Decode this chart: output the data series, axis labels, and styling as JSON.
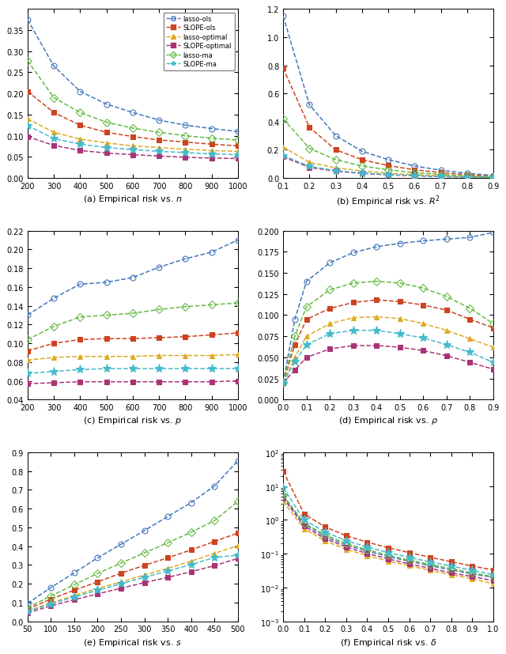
{
  "colors": {
    "lasso_ols": "#4477BB",
    "SLOPE_ols": "#CC4422",
    "lasso_optimal": "#DDAA22",
    "SLOPE_optimal": "#AA3377",
    "lasso_ma": "#66BB44",
    "SLOPE_ma": "#44BBCC"
  },
  "markers": {
    "lasso_ols": "o",
    "SLOPE_ols": "s",
    "lasso_optimal": "^",
    "SLOPE_optimal": "s",
    "lasso_ma": "D",
    "SLOPE_ma": "*"
  },
  "open_markers": [
    "o",
    "D"
  ],
  "legend_labels": [
    "lasso-ols",
    "SLOPE-ols",
    "lasso-optimal",
    "SLOPE-optimal",
    "lasso-ma",
    "SLOPE-ma"
  ],
  "subplot_titles": [
    "(a) Empirical risk vs. $n$",
    "(b) Empirical risk vs. $R^2$",
    "(c) Empirical risk vs. $p$",
    "(d) Empirical risk vs. $\\rho$",
    "(e) Empirical risk vs. $s$",
    "(f) Empirical risk vs. $\\delta$"
  ],
  "panel_a": {
    "x": [
      200,
      300,
      400,
      500,
      600,
      700,
      800,
      900,
      1000
    ],
    "lasso_ols": [
      0.375,
      0.265,
      0.205,
      0.175,
      0.155,
      0.137,
      0.125,
      0.117,
      0.11
    ],
    "SLOPE_ols": [
      0.205,
      0.155,
      0.125,
      0.108,
      0.098,
      0.09,
      0.085,
      0.08,
      0.076
    ],
    "lasso_optimal": [
      0.14,
      0.108,
      0.092,
      0.083,
      0.076,
      0.072,
      0.068,
      0.065,
      0.063
    ],
    "SLOPE_optimal": [
      0.098,
      0.077,
      0.065,
      0.059,
      0.055,
      0.052,
      0.049,
      0.047,
      0.046
    ],
    "lasso_ma": [
      0.278,
      0.19,
      0.155,
      0.132,
      0.118,
      0.108,
      0.1,
      0.094,
      0.09
    ],
    "SLOPE_ma": [
      0.124,
      0.093,
      0.08,
      0.072,
      0.067,
      0.063,
      0.06,
      0.057,
      0.055
    ],
    "xlim": [
      200,
      1000
    ],
    "ylim": [
      0.0,
      0.4
    ],
    "yticks": [
      0.0,
      0.05,
      0.1,
      0.15,
      0.2,
      0.25,
      0.3,
      0.35
    ],
    "xticks": [
      200,
      300,
      400,
      500,
      600,
      700,
      800,
      900,
      1000
    ]
  },
  "panel_b": {
    "x": [
      0.1,
      0.2,
      0.3,
      0.4,
      0.5,
      0.6,
      0.7,
      0.8,
      0.9
    ],
    "lasso_ols": [
      1.15,
      0.52,
      0.3,
      0.19,
      0.13,
      0.085,
      0.055,
      0.033,
      0.018
    ],
    "SLOPE_ols": [
      0.78,
      0.36,
      0.2,
      0.13,
      0.088,
      0.058,
      0.038,
      0.023,
      0.012
    ],
    "lasso_optimal": [
      0.22,
      0.11,
      0.072,
      0.049,
      0.034,
      0.023,
      0.015,
      0.009,
      0.005
    ],
    "SLOPE_optimal": [
      0.15,
      0.075,
      0.048,
      0.032,
      0.022,
      0.015,
      0.01,
      0.006,
      0.003
    ],
    "lasso_ma": [
      0.42,
      0.21,
      0.13,
      0.085,
      0.058,
      0.038,
      0.025,
      0.015,
      0.008
    ],
    "SLOPE_ma": [
      0.16,
      0.082,
      0.052,
      0.035,
      0.024,
      0.016,
      0.01,
      0.006,
      0.003
    ],
    "xlim": [
      0.1,
      0.9
    ],
    "ylim": [
      0.0,
      1.2
    ],
    "yticks": [
      0.0,
      0.2,
      0.4,
      0.6,
      0.8,
      1.0,
      1.2
    ],
    "xticks": [
      0.1,
      0.2,
      0.3,
      0.4,
      0.5,
      0.6,
      0.7,
      0.8,
      0.9
    ]
  },
  "panel_c": {
    "x": [
      200,
      300,
      400,
      500,
      600,
      700,
      800,
      900,
      1000
    ],
    "lasso_ols": [
      0.13,
      0.148,
      0.163,
      0.165,
      0.17,
      0.181,
      0.19,
      0.197,
      0.21
    ],
    "SLOPE_ols": [
      0.092,
      0.1,
      0.104,
      0.105,
      0.105,
      0.106,
      0.107,
      0.109,
      0.111
    ],
    "lasso_optimal": [
      0.082,
      0.085,
      0.086,
      0.086,
      0.086,
      0.087,
      0.087,
      0.087,
      0.088
    ],
    "SLOPE_optimal": [
      0.057,
      0.058,
      0.059,
      0.059,
      0.059,
      0.059,
      0.059,
      0.059,
      0.06
    ],
    "lasso_ma": [
      0.104,
      0.118,
      0.128,
      0.13,
      0.132,
      0.136,
      0.139,
      0.141,
      0.143
    ],
    "SLOPE_ma": [
      0.068,
      0.07,
      0.072,
      0.073,
      0.073,
      0.073,
      0.073,
      0.073,
      0.073
    ],
    "xlim": [
      200,
      1000
    ],
    "ylim": [
      0.04,
      0.22
    ],
    "yticks": [
      0.04,
      0.06,
      0.08,
      0.1,
      0.12,
      0.14,
      0.16,
      0.18,
      0.2,
      0.22
    ],
    "xticks": [
      200,
      300,
      400,
      500,
      600,
      700,
      800,
      900,
      1000
    ]
  },
  "panel_d": {
    "x": [
      0.0,
      0.05,
      0.1,
      0.2,
      0.3,
      0.4,
      0.5,
      0.6,
      0.7,
      0.8,
      0.9
    ],
    "lasso_ols": [
      0.02,
      0.095,
      0.14,
      0.162,
      0.174,
      0.181,
      0.185,
      0.188,
      0.19,
      0.192,
      0.198
    ],
    "SLOPE_ols": [
      0.02,
      0.065,
      0.095,
      0.108,
      0.115,
      0.118,
      0.116,
      0.112,
      0.106,
      0.095,
      0.085
    ],
    "lasso_optimal": [
      0.02,
      0.05,
      0.075,
      0.09,
      0.097,
      0.098,
      0.096,
      0.09,
      0.082,
      0.072,
      0.062
    ],
    "SLOPE_optimal": [
      0.02,
      0.035,
      0.05,
      0.06,
      0.064,
      0.064,
      0.062,
      0.058,
      0.052,
      0.044,
      0.036
    ],
    "lasso_ma": [
      0.02,
      0.075,
      0.11,
      0.13,
      0.138,
      0.14,
      0.138,
      0.132,
      0.122,
      0.108,
      0.09
    ],
    "SLOPE_ma": [
      0.02,
      0.045,
      0.065,
      0.078,
      0.082,
      0.082,
      0.078,
      0.073,
      0.065,
      0.056,
      0.044
    ],
    "xlim": [
      0.0,
      0.9
    ],
    "ylim": [
      0.0,
      0.2
    ],
    "yticks": [
      0.0,
      0.02,
      0.04,
      0.06,
      0.08,
      0.1,
      0.12,
      0.14,
      0.16,
      0.18,
      0.2
    ],
    "xticks": [
      0.0,
      0.1,
      0.2,
      0.3,
      0.4,
      0.5,
      0.6,
      0.7,
      0.8,
      0.9
    ]
  },
  "panel_e": {
    "x": [
      50,
      100,
      150,
      200,
      250,
      300,
      350,
      400,
      450,
      500
    ],
    "lasso_ols": [
      0.095,
      0.18,
      0.258,
      0.338,
      0.41,
      0.483,
      0.558,
      0.632,
      0.72,
      0.855
    ],
    "SLOPE_ols": [
      0.065,
      0.118,
      0.166,
      0.21,
      0.256,
      0.298,
      0.338,
      0.38,
      0.425,
      0.47
    ],
    "lasso_optimal": [
      0.055,
      0.098,
      0.138,
      0.175,
      0.21,
      0.246,
      0.282,
      0.32,
      0.362,
      0.402
    ],
    "SLOPE_optimal": [
      0.045,
      0.082,
      0.115,
      0.146,
      0.176,
      0.206,
      0.234,
      0.264,
      0.296,
      0.335
    ],
    "lasso_ma": [
      0.072,
      0.135,
      0.195,
      0.255,
      0.31,
      0.364,
      0.418,
      0.474,
      0.536,
      0.638
    ],
    "SLOPE_ma": [
      0.052,
      0.092,
      0.13,
      0.165,
      0.2,
      0.234,
      0.268,
      0.302,
      0.34,
      0.352
    ],
    "xlim": [
      50,
      500
    ],
    "ylim": [
      0.0,
      0.9
    ],
    "yticks": [
      0.0,
      0.1,
      0.2,
      0.3,
      0.4,
      0.5,
      0.6,
      0.7,
      0.8,
      0.9
    ],
    "xticks": [
      50,
      100,
      150,
      200,
      250,
      300,
      350,
      400,
      450,
      500
    ]
  },
  "panel_f": {
    "x": [
      0.0,
      0.1,
      0.2,
      0.3,
      0.4,
      0.5,
      0.6,
      0.7,
      0.8,
      0.9,
      1.0
    ],
    "lasso_ols": [
      5.0,
      0.75,
      0.32,
      0.18,
      0.12,
      0.082,
      0.06,
      0.044,
      0.033,
      0.025,
      0.02
    ],
    "SLOPE_ols": [
      28.0,
      1.5,
      0.62,
      0.34,
      0.22,
      0.15,
      0.108,
      0.078,
      0.058,
      0.043,
      0.033
    ],
    "lasso_optimal": [
      3.5,
      0.55,
      0.24,
      0.135,
      0.088,
      0.06,
      0.044,
      0.032,
      0.024,
      0.018,
      0.013
    ],
    "SLOPE_optimal": [
      4.5,
      0.65,
      0.28,
      0.158,
      0.102,
      0.07,
      0.05,
      0.037,
      0.027,
      0.021,
      0.016
    ],
    "lasso_ma": [
      5.5,
      0.8,
      0.36,
      0.2,
      0.132,
      0.09,
      0.065,
      0.048,
      0.036,
      0.027,
      0.021
    ],
    "SLOPE_ma": [
      9.0,
      1.0,
      0.44,
      0.245,
      0.158,
      0.108,
      0.078,
      0.057,
      0.043,
      0.032,
      0.024
    ],
    "xlim": [
      0.0,
      1.0
    ],
    "ylim_log": [
      -3,
      2
    ],
    "xticks": [
      0.0,
      0.1,
      0.2,
      0.3,
      0.4,
      0.5,
      0.6,
      0.7,
      0.8,
      0.9,
      1.0
    ]
  }
}
